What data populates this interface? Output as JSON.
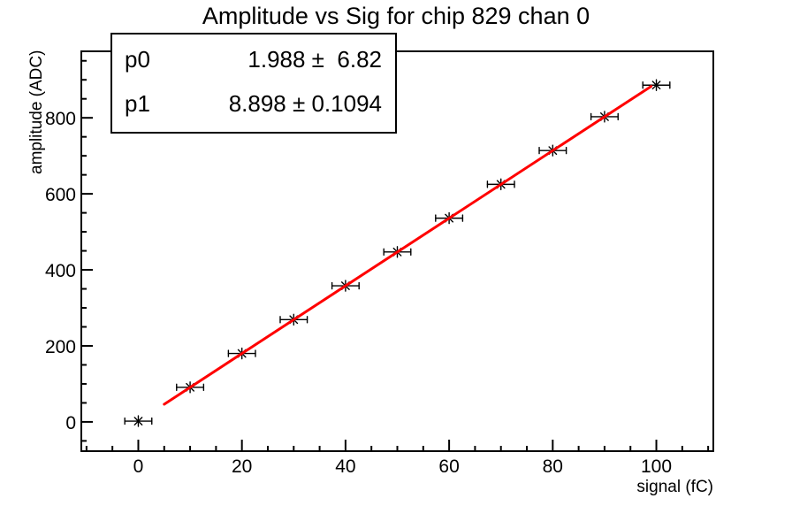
{
  "title": "Amplitude vs Sig for chip 829 chan 0",
  "stats_box": {
    "rows": [
      {
        "param": "p0",
        "value": "1.988 ±  6.82"
      },
      {
        "param": "p1",
        "value": "8.898 ± 0.1094"
      }
    ]
  },
  "chart_data": {
    "type": "scatter",
    "title": "Amplitude vs Sig for chip 829 chan 0",
    "xlabel": "signal (fC)",
    "ylabel": "amplitude (ADC)",
    "x": [
      0,
      10,
      20,
      30,
      40,
      50,
      60,
      70,
      80,
      90,
      100
    ],
    "y": [
      2,
      91,
      180,
      269,
      358,
      447,
      536,
      625,
      714,
      803,
      886
    ],
    "x_error": 1.5,
    "marker": "asterisk",
    "marker_color": "#000000",
    "fit": {
      "type": "linear",
      "p0": 1.988,
      "p0_err": 6.82,
      "p1": 8.898,
      "p1_err": 0.1094,
      "range": [
        5,
        99
      ],
      "color": "#ff0000"
    },
    "xlim": [
      -11,
      111
    ],
    "ylim": [
      -77,
      975
    ],
    "x_major_ticks": [
      0,
      20,
      40,
      60,
      80,
      100
    ],
    "x_minor_step": 5,
    "y_major_ticks": [
      0,
      200,
      400,
      600,
      800
    ],
    "y_minor_step": 50,
    "grid": false,
    "legend": null
  },
  "colors": {
    "background": "#ffffff",
    "axis": "#000000",
    "text": "#000000",
    "fit_line": "#ff0000"
  }
}
